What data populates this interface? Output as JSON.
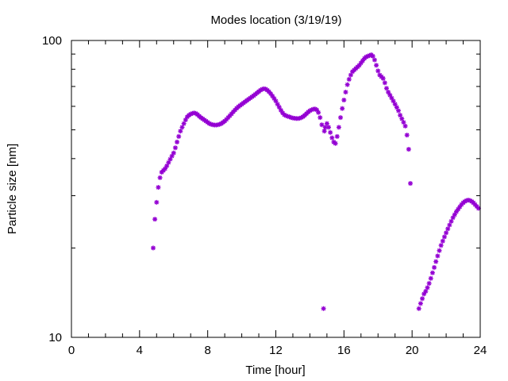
{
  "chart_data": {
    "type": "scatter",
    "title": "Modes location (3/19/19)",
    "xlabel": "Time [hour]",
    "ylabel": "Particle size [nm]",
    "xlim": [
      0,
      24
    ],
    "ylim": [
      10,
      100
    ],
    "yscale": "log",
    "x_ticks": [
      0,
      4,
      8,
      12,
      16,
      20,
      24
    ],
    "x_tick_labels": [
      "0",
      "4",
      "8",
      "12",
      "16",
      "20",
      "24"
    ],
    "y_tick_labels": [
      "10",
      "100"
    ],
    "y_tick_values": [
      10,
      100
    ],
    "grid": false,
    "marker_color": "#9400d3",
    "series": [
      {
        "points": [
          [
            4.8,
            20.0
          ],
          [
            4.9,
            25.0
          ],
          [
            5.0,
            28.5
          ],
          [
            5.1,
            32.0
          ],
          [
            5.2,
            34.5
          ],
          [
            5.3,
            36.0
          ],
          [
            5.4,
            36.5
          ],
          [
            5.5,
            37.0
          ],
          [
            5.6,
            37.8
          ],
          [
            5.7,
            38.8
          ],
          [
            5.8,
            39.8
          ],
          [
            5.9,
            40.8
          ],
          [
            6.0,
            41.8
          ],
          [
            6.1,
            43.5
          ],
          [
            6.2,
            45.5
          ],
          [
            6.3,
            47.5
          ],
          [
            6.4,
            49.5
          ],
          [
            6.5,
            51.0
          ],
          [
            6.6,
            52.5
          ],
          [
            6.7,
            54.0
          ],
          [
            6.8,
            55.3
          ],
          [
            6.9,
            56.0
          ],
          [
            7.0,
            56.5
          ],
          [
            7.1,
            56.8
          ],
          [
            7.2,
            57.0
          ],
          [
            7.3,
            56.8
          ],
          [
            7.4,
            56.3
          ],
          [
            7.5,
            55.6
          ],
          [
            7.6,
            55.0
          ],
          [
            7.7,
            54.5
          ],
          [
            7.8,
            54.0
          ],
          [
            7.9,
            53.5
          ],
          [
            8.0,
            53.0
          ],
          [
            8.1,
            52.5
          ],
          [
            8.2,
            52.2
          ],
          [
            8.3,
            52.0
          ],
          [
            8.4,
            51.9
          ],
          [
            8.5,
            51.9
          ],
          [
            8.6,
            52.0
          ],
          [
            8.7,
            52.2
          ],
          [
            8.8,
            52.5
          ],
          [
            8.9,
            53.0
          ],
          [
            9.0,
            53.5
          ],
          [
            9.1,
            54.2
          ],
          [
            9.2,
            55.0
          ],
          [
            9.3,
            55.8
          ],
          [
            9.4,
            56.6
          ],
          [
            9.5,
            57.5
          ],
          [
            9.6,
            58.3
          ],
          [
            9.7,
            59.1
          ],
          [
            9.8,
            59.8
          ],
          [
            9.9,
            60.4
          ],
          [
            10.0,
            61.0
          ],
          [
            10.1,
            61.6
          ],
          [
            10.2,
            62.2
          ],
          [
            10.3,
            62.8
          ],
          [
            10.4,
            63.4
          ],
          [
            10.5,
            64.0
          ],
          [
            10.6,
            64.6
          ],
          [
            10.7,
            65.2
          ],
          [
            10.8,
            65.9
          ],
          [
            10.9,
            66.6
          ],
          [
            11.0,
            67.3
          ],
          [
            11.1,
            68.0
          ],
          [
            11.2,
            68.5
          ],
          [
            11.3,
            68.8
          ],
          [
            11.4,
            68.6
          ],
          [
            11.5,
            68.0
          ],
          [
            11.6,
            67.2
          ],
          [
            11.7,
            66.2
          ],
          [
            11.8,
            65.0
          ],
          [
            11.9,
            63.8
          ],
          [
            12.0,
            62.5
          ],
          [
            12.1,
            61.0
          ],
          [
            12.2,
            59.6
          ],
          [
            12.3,
            58.2
          ],
          [
            12.4,
            57.0
          ],
          [
            12.5,
            56.2
          ],
          [
            12.6,
            55.8
          ],
          [
            12.7,
            55.5
          ],
          [
            12.8,
            55.3
          ],
          [
            12.9,
            55.0
          ],
          [
            13.0,
            54.8
          ],
          [
            13.1,
            54.7
          ],
          [
            13.2,
            54.6
          ],
          [
            13.3,
            54.6
          ],
          [
            13.4,
            54.7
          ],
          [
            13.5,
            55.0
          ],
          [
            13.6,
            55.4
          ],
          [
            13.7,
            56.0
          ],
          [
            13.8,
            56.7
          ],
          [
            13.9,
            57.4
          ],
          [
            14.0,
            58.0
          ],
          [
            14.1,
            58.4
          ],
          [
            14.2,
            58.7
          ],
          [
            14.3,
            58.8
          ],
          [
            14.4,
            58.4
          ],
          [
            14.5,
            57.2
          ],
          [
            14.6,
            55.0
          ],
          [
            14.7,
            52.0
          ],
          [
            14.8,
            12.5
          ],
          [
            14.85,
            49.5
          ],
          [
            14.9,
            51.0
          ],
          [
            15.0,
            52.5
          ],
          [
            15.1,
            51.0
          ],
          [
            15.2,
            49.0
          ],
          [
            15.3,
            47.0
          ],
          [
            15.4,
            45.5
          ],
          [
            15.5,
            45.0
          ],
          [
            15.6,
            47.5
          ],
          [
            15.7,
            51.0
          ],
          [
            15.8,
            55.0
          ],
          [
            15.9,
            59.0
          ],
          [
            16.0,
            63.0
          ],
          [
            16.1,
            67.0
          ],
          [
            16.2,
            71.0
          ],
          [
            16.3,
            74.0
          ],
          [
            16.4,
            76.5
          ],
          [
            16.5,
            78.5
          ],
          [
            16.6,
            79.5
          ],
          [
            16.7,
            80.5
          ],
          [
            16.8,
            81.5
          ],
          [
            16.9,
            82.5
          ],
          [
            17.0,
            84.0
          ],
          [
            17.1,
            85.5
          ],
          [
            17.2,
            87.0
          ],
          [
            17.3,
            88.0
          ],
          [
            17.4,
            88.5
          ],
          [
            17.5,
            89.0
          ],
          [
            17.6,
            89.5
          ],
          [
            17.7,
            88.5
          ],
          [
            17.8,
            86.0
          ],
          [
            17.9,
            82.5
          ],
          [
            18.0,
            79.0
          ],
          [
            18.1,
            76.5
          ],
          [
            18.2,
            75.5
          ],
          [
            18.3,
            74.5
          ],
          [
            18.4,
            72.0
          ],
          [
            18.5,
            69.0
          ],
          [
            18.6,
            67.0
          ],
          [
            18.7,
            65.5
          ],
          [
            18.8,
            64.0
          ],
          [
            18.9,
            62.5
          ],
          [
            19.0,
            61.0
          ],
          [
            19.1,
            59.5
          ],
          [
            19.2,
            58.0
          ],
          [
            19.3,
            56.0
          ],
          [
            19.4,
            54.5
          ],
          [
            19.5,
            53.0
          ],
          [
            19.6,
            51.5
          ],
          [
            19.7,
            48.0
          ],
          [
            19.8,
            43.0
          ],
          [
            19.9,
            33.0
          ],
          [
            20.4,
            12.5
          ],
          [
            20.5,
            13.0
          ],
          [
            20.6,
            13.5
          ],
          [
            20.7,
            14.0
          ],
          [
            20.8,
            14.3
          ],
          [
            20.9,
            14.7
          ],
          [
            21.0,
            15.2
          ],
          [
            21.1,
            15.8
          ],
          [
            21.2,
            16.5
          ],
          [
            21.3,
            17.2
          ],
          [
            21.4,
            18.0
          ],
          [
            21.5,
            18.8
          ],
          [
            21.6,
            19.6
          ],
          [
            21.7,
            20.4
          ],
          [
            21.8,
            21.1
          ],
          [
            21.9,
            21.8
          ],
          [
            22.0,
            22.5
          ],
          [
            22.1,
            23.2
          ],
          [
            22.2,
            23.9
          ],
          [
            22.3,
            24.6
          ],
          [
            22.4,
            25.3
          ],
          [
            22.5,
            25.9
          ],
          [
            22.6,
            26.5
          ],
          [
            22.7,
            27.0
          ],
          [
            22.8,
            27.5
          ],
          [
            22.9,
            28.0
          ],
          [
            23.0,
            28.4
          ],
          [
            23.1,
            28.7
          ],
          [
            23.2,
            28.9
          ],
          [
            23.3,
            29.0
          ],
          [
            23.4,
            28.9
          ],
          [
            23.5,
            28.7
          ],
          [
            23.6,
            28.4
          ],
          [
            23.7,
            28.0
          ],
          [
            23.8,
            27.6
          ],
          [
            23.9,
            27.2
          ]
        ]
      }
    ]
  }
}
